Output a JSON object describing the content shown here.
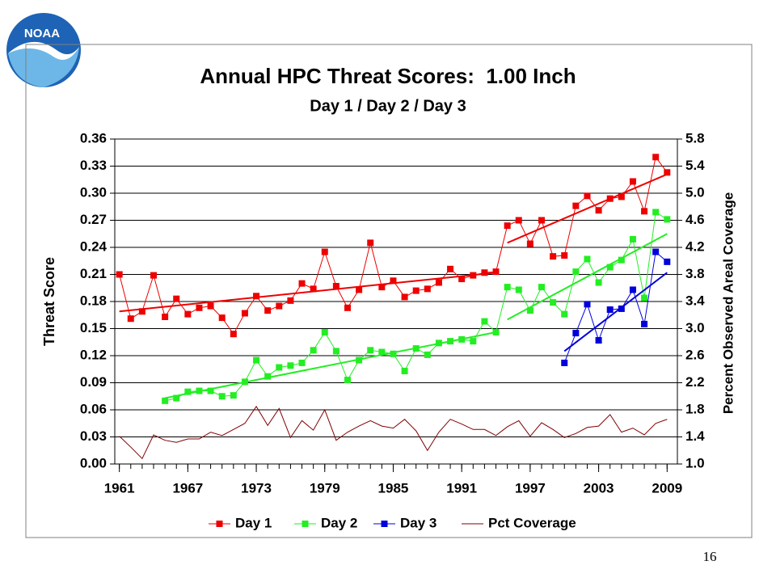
{
  "logo_text": "NOAA",
  "page_number": "16",
  "chart_data": {
    "type": "line",
    "title": "Annual HPC Threat Scores:  1.00 Inch",
    "subtitle": "Day 1 / Day 2 / Day 3",
    "ylabel": "Threat Score",
    "y2label": "Percent Observed Areal Coverage",
    "xlim": [
      1960.6,
      2009.9
    ],
    "xticks": [
      1961,
      1967,
      1973,
      1979,
      1985,
      1991,
      1997,
      2003,
      2009
    ],
    "ylim": [
      0,
      0.36
    ],
    "yticks": [
      {
        "value": 0,
        "label": "0.00"
      },
      {
        "value": 0.03,
        "label": "0.03"
      },
      {
        "value": 0.06,
        "label": "0.06"
      },
      {
        "value": 0.09,
        "label": "0.09"
      },
      {
        "value": 0.12,
        "label": "0.12"
      },
      {
        "value": 0.15,
        "label": "0.15"
      },
      {
        "value": 0.18,
        "label": "0.18"
      },
      {
        "value": 0.21,
        "label": "0.21"
      },
      {
        "value": 0.24,
        "label": "0.24"
      },
      {
        "value": 0.27,
        "label": "0.27"
      },
      {
        "value": 0.3,
        "label": "0.30"
      },
      {
        "value": 0.33,
        "label": "0.33"
      },
      {
        "value": 0.36,
        "label": "0.36"
      }
    ],
    "y2lim": [
      1.0,
      5.8
    ],
    "y2ticks": [
      {
        "value": 1,
        "label": "1.0"
      },
      {
        "value": 1.4,
        "label": "1.4"
      },
      {
        "value": 1.8,
        "label": "1.8"
      },
      {
        "value": 2.2,
        "label": "2.2"
      },
      {
        "value": 2.6,
        "label": "2.6"
      },
      {
        "value": 3,
        "label": "3.0"
      },
      {
        "value": 3.4,
        "label": "3.4"
      },
      {
        "value": 3.8,
        "label": "3.8"
      },
      {
        "value": 4.2,
        "label": "4.2"
      },
      {
        "value": 4.6,
        "label": "4.6"
      },
      {
        "value": 5,
        "label": "5.0"
      },
      {
        "value": 5.4,
        "label": "5.4"
      },
      {
        "value": 5.8,
        "label": "5.8"
      }
    ],
    "grid": true,
    "legend": "bottom",
    "series": [
      {
        "name": "Day 1",
        "color": "#ee0000",
        "marker": true,
        "x": [
          1961,
          1962,
          1963,
          1964,
          1965,
          1966,
          1967,
          1968,
          1969,
          1970,
          1971,
          1972,
          1973,
          1974,
          1975,
          1976,
          1977,
          1978,
          1979,
          1980,
          1981,
          1982,
          1983,
          1984,
          1985,
          1986,
          1987,
          1988,
          1989,
          1990,
          1991,
          1992,
          1993,
          1994,
          1995,
          1996,
          1997,
          1998,
          1999,
          2000,
          2001,
          2002,
          2003,
          2004,
          2005,
          2006,
          2007,
          2008,
          2009
        ],
        "values": [
          0.21,
          0.161,
          0.169,
          0.209,
          0.163,
          0.183,
          0.166,
          0.173,
          0.175,
          0.162,
          0.144,
          0.167,
          0.186,
          0.17,
          0.175,
          0.181,
          0.2,
          0.194,
          0.235,
          0.197,
          0.173,
          0.193,
          0.245,
          0.196,
          0.203,
          0.185,
          0.192,
          0.194,
          0.201,
          0.216,
          0.205,
          0.209,
          0.212,
          0.213,
          0.264,
          0.27,
          0.244,
          0.27,
          0.23,
          0.231,
          0.286,
          0.297,
          0.281,
          0.294,
          0.296,
          0.313,
          0.28,
          0.34,
          0.323
        ]
      },
      {
        "name": "Day 2",
        "color": "#22ee22",
        "marker": true,
        "x": [
          1965,
          1966,
          1967,
          1968,
          1969,
          1970,
          1971,
          1972,
          1973,
          1974,
          1975,
          1976,
          1977,
          1978,
          1979,
          1980,
          1981,
          1982,
          1983,
          1984,
          1985,
          1986,
          1987,
          1988,
          1989,
          1990,
          1991,
          1992,
          1993,
          1994,
          1995,
          1996,
          1997,
          1998,
          1999,
          2000,
          2001,
          2002,
          2003,
          2004,
          2005,
          2006,
          2007,
          2008,
          2009
        ],
        "values": [
          0.07,
          0.073,
          0.08,
          0.081,
          0.081,
          0.075,
          0.076,
          0.091,
          0.115,
          0.097,
          0.107,
          0.109,
          0.112,
          0.126,
          0.146,
          0.125,
          0.093,
          0.115,
          0.126,
          0.124,
          0.122,
          0.103,
          0.128,
          0.121,
          0.134,
          0.136,
          0.138,
          0.136,
          0.158,
          0.146,
          0.196,
          0.193,
          0.17,
          0.196,
          0.179,
          0.166,
          0.213,
          0.227,
          0.201,
          0.218,
          0.226,
          0.249,
          0.184,
          0.279,
          0.271
        ]
      },
      {
        "name": "Day 3",
        "color": "#0000dd",
        "marker": true,
        "x": [
          2000,
          2001,
          2002,
          2003,
          2004,
          2005,
          2006,
          2007,
          2008,
          2009
        ],
        "values": [
          0.112,
          0.145,
          0.177,
          0.137,
          0.171,
          0.172,
          0.193,
          0.155,
          0.235,
          0.224
        ]
      },
      {
        "name": "Pct Coverage",
        "color": "#800000",
        "marker": false,
        "axis": "y2",
        "x": [
          1961,
          1962,
          1963,
          1964,
          1965,
          1966,
          1967,
          1968,
          1969,
          1970,
          1971,
          1972,
          1973,
          1974,
          1975,
          1976,
          1977,
          1978,
          1979,
          1980,
          1981,
          1982,
          1983,
          1984,
          1985,
          1986,
          1987,
          1988,
          1989,
          1990,
          1991,
          1992,
          1993,
          1994,
          1995,
          1996,
          1997,
          1998,
          1999,
          2000,
          2001,
          2002,
          2003,
          2004,
          2005,
          2006,
          2007,
          2008,
          2009
        ],
        "values": [
          1.41,
          1.25,
          1.08,
          1.43,
          1.35,
          1.32,
          1.37,
          1.37,
          1.47,
          1.42,
          1.51,
          1.6,
          1.85,
          1.57,
          1.82,
          1.39,
          1.64,
          1.5,
          1.8,
          1.35,
          1.47,
          1.56,
          1.64,
          1.56,
          1.53,
          1.66,
          1.49,
          1.2,
          1.47,
          1.66,
          1.59,
          1.51,
          1.51,
          1.42,
          1.55,
          1.64,
          1.41,
          1.61,
          1.51,
          1.39,
          1.45,
          1.54,
          1.56,
          1.73,
          1.47,
          1.53,
          1.43,
          1.6,
          1.66
        ]
      }
    ],
    "trend_lines": [
      {
        "color": "#ee0000",
        "x": [
          1961,
          1994
        ],
        "values": [
          0.169,
          0.212
        ]
      },
      {
        "color": "#ee0000",
        "x": [
          1995,
          2009
        ],
        "values": [
          0.245,
          0.321
        ]
      },
      {
        "color": "#22ee22",
        "x": [
          1965,
          1994
        ],
        "values": [
          0.073,
          0.146
        ]
      },
      {
        "color": "#22ee22",
        "x": [
          1995,
          2009
        ],
        "values": [
          0.16,
          0.255
        ]
      },
      {
        "color": "#0000dd",
        "x": [
          2000,
          2009
        ],
        "values": [
          0.125,
          0.212
        ]
      }
    ]
  }
}
